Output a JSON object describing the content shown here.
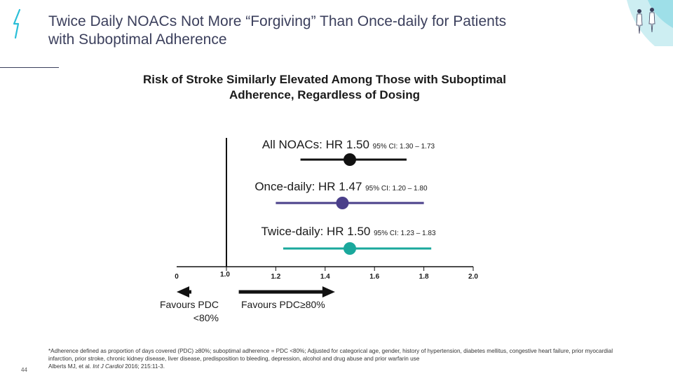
{
  "slide": {
    "title": "Twice Daily NOACs Not More “Forgiving” Than Once-daily for Patients with Suboptimal Adherence",
    "subtitle": "Risk of Stroke Similarly Elevated Among Those with Suboptimal Adherence, Regardless of Dosing",
    "page_number": "44",
    "footnote_line1": "*Adherence defined as proportion of days covered (PDC) ≥80%; suboptimal adherence = PDC <80%; Adjusted for categorical age, gender, history of hypertension, diabetes mellitus, congestive heart failure, prior myocardial infarction, prior stroke, chronic kidney disease, liver disease, predisposition to bleeding, depression, alcohol and drug abuse and prior warfarin use",
    "citation_authors": "Alberts MJ, et al. ",
    "citation_journal": "Int J Cardiol",
    "citation_rest": " 2016; 215:11-3.",
    "favours_left": "Favours PDC <80%",
    "favours_right": "Favours PDC≥80%"
  },
  "colors": {
    "all": "#111111",
    "once": "#4a3f8a",
    "twice": "#1aa89c",
    "accent": "#2bbfd8"
  },
  "chart_data": {
    "type": "forest",
    "xlim": [
      0,
      2.0
    ],
    "axis_break": "between 0 and 1.0",
    "ticks": [
      "0",
      "1.0",
      "1.2",
      "1.4",
      "1.6",
      "1.8",
      "2.0"
    ],
    "tick_values": [
      0,
      1.0,
      1.2,
      1.4,
      1.6,
      1.8,
      2.0
    ],
    "reference_line": 1.0,
    "rows": [
      {
        "label": "All NOACs: HR 1.50",
        "ci_text": "95% CI: 1.30 – 1.73",
        "hr": 1.5,
        "lower": 1.3,
        "upper": 1.73,
        "color": "#111111"
      },
      {
        "label": "Once-daily: HR 1.47",
        "ci_text": "95% CI: 1.20 – 1.80",
        "hr": 1.47,
        "lower": 1.2,
        "upper": 1.8,
        "color": "#4a3f8a"
      },
      {
        "label": "Twice-daily: HR 1.50",
        "ci_text": "95% CI: 1.23 – 1.83",
        "hr": 1.5,
        "lower": 1.23,
        "upper": 1.83,
        "color": "#1aa89c"
      }
    ]
  }
}
